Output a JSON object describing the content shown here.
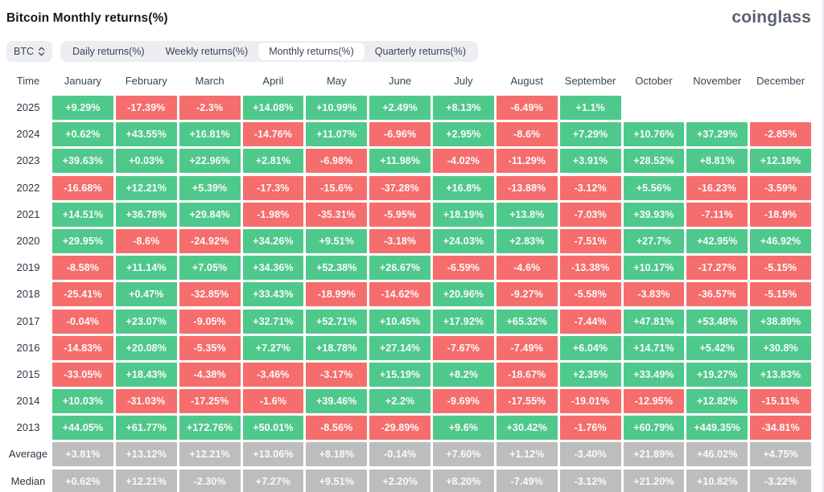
{
  "page": {
    "title": "Bitcoin Monthly returns(%)",
    "brand": "coinglass"
  },
  "controls": {
    "symbol_select": {
      "value": "BTC"
    },
    "tabs": [
      {
        "label": "Daily returns(%)",
        "active": false
      },
      {
        "label": "Weekly returns(%)",
        "active": false
      },
      {
        "label": "Monthly returns(%)",
        "active": true
      },
      {
        "label": "Quarterly returns(%)",
        "active": false
      }
    ]
  },
  "table": {
    "time_header": "Time",
    "month_headers": [
      "January",
      "February",
      "March",
      "April",
      "May",
      "June",
      "July",
      "August",
      "September",
      "October",
      "November",
      "December"
    ],
    "rows": [
      {
        "label": "2025",
        "type": "year",
        "values": [
          "+9.29%",
          "-17.39%",
          "-2.3%",
          "+14.08%",
          "+10.99%",
          "+2.49%",
          "+8.13%",
          "-6.49%",
          "+1.1%",
          null,
          null,
          null
        ]
      },
      {
        "label": "2024",
        "type": "year",
        "values": [
          "+0.62%",
          "+43.55%",
          "+16.81%",
          "-14.76%",
          "+11.07%",
          "-6.96%",
          "+2.95%",
          "-8.6%",
          "+7.29%",
          "+10.76%",
          "+37.29%",
          "-2.85%"
        ]
      },
      {
        "label": "2023",
        "type": "year",
        "values": [
          "+39.63%",
          "+0.03%",
          "+22.96%",
          "+2.81%",
          "-6.98%",
          "+11.98%",
          "-4.02%",
          "-11.29%",
          "+3.91%",
          "+28.52%",
          "+8.81%",
          "+12.18%"
        ]
      },
      {
        "label": "2022",
        "type": "year",
        "values": [
          "-16.68%",
          "+12.21%",
          "+5.39%",
          "-17.3%",
          "-15.6%",
          "-37.28%",
          "+16.8%",
          "-13.88%",
          "-3.12%",
          "+5.56%",
          "-16.23%",
          "-3.59%"
        ]
      },
      {
        "label": "2021",
        "type": "year",
        "values": [
          "+14.51%",
          "+36.78%",
          "+29.84%",
          "-1.98%",
          "-35.31%",
          "-5.95%",
          "+18.19%",
          "+13.8%",
          "-7.03%",
          "+39.93%",
          "-7.11%",
          "-18.9%"
        ]
      },
      {
        "label": "2020",
        "type": "year",
        "values": [
          "+29.95%",
          "-8.6%",
          "-24.92%",
          "+34.26%",
          "+9.51%",
          "-3.18%",
          "+24.03%",
          "+2.83%",
          "-7.51%",
          "+27.7%",
          "+42.95%",
          "+46.92%"
        ]
      },
      {
        "label": "2019",
        "type": "year",
        "values": [
          "-8.58%",
          "+11.14%",
          "+7.05%",
          "+34.36%",
          "+52.38%",
          "+26.67%",
          "-6.59%",
          "-4.6%",
          "-13.38%",
          "+10.17%",
          "-17.27%",
          "-5.15%"
        ]
      },
      {
        "label": "2018",
        "type": "year",
        "values": [
          "-25.41%",
          "+0.47%",
          "-32.85%",
          "+33.43%",
          "-18.99%",
          "-14.62%",
          "+20.96%",
          "-9.27%",
          "-5.58%",
          "-3.83%",
          "-36.57%",
          "-5.15%"
        ]
      },
      {
        "label": "2017",
        "type": "year",
        "values": [
          "-0.04%",
          "+23.07%",
          "-9.05%",
          "+32.71%",
          "+52.71%",
          "+10.45%",
          "+17.92%",
          "+65.32%",
          "-7.44%",
          "+47.81%",
          "+53.48%",
          "+38.89%"
        ]
      },
      {
        "label": "2016",
        "type": "year",
        "values": [
          "-14.83%",
          "+20.08%",
          "-5.35%",
          "+7.27%",
          "+18.78%",
          "+27.14%",
          "-7.67%",
          "-7.49%",
          "+6.04%",
          "+14.71%",
          "+5.42%",
          "+30.8%"
        ]
      },
      {
        "label": "2015",
        "type": "year",
        "values": [
          "-33.05%",
          "+18.43%",
          "-4.38%",
          "-3.46%",
          "-3.17%",
          "+15.19%",
          "+8.2%",
          "-18.67%",
          "+2.35%",
          "+33.49%",
          "+19.27%",
          "+13.83%"
        ]
      },
      {
        "label": "2014",
        "type": "year",
        "values": [
          "+10.03%",
          "-31.03%",
          "-17.25%",
          "-1.6%",
          "+39.46%",
          "+2.2%",
          "-9.69%",
          "-17.55%",
          "-19.01%",
          "-12.95%",
          "+12.82%",
          "-15.11%"
        ]
      },
      {
        "label": "2013",
        "type": "year",
        "values": [
          "+44.05%",
          "+61.77%",
          "+172.76%",
          "+50.01%",
          "-8.56%",
          "-29.89%",
          "+9.6%",
          "+30.42%",
          "-1.76%",
          "+60.79%",
          "+449.35%",
          "-34.81%"
        ]
      },
      {
        "label": "Average",
        "type": "summary",
        "values": [
          "+3.81%",
          "+13.12%",
          "+12.21%",
          "+13.06%",
          "+8.18%",
          "-0.14%",
          "+7.60%",
          "+1.12%",
          "-3.40%",
          "+21.89%",
          "+46.02%",
          "+4.75%"
        ]
      },
      {
        "label": "Median",
        "type": "summary",
        "values": [
          "+0.62%",
          "+12.21%",
          "-2.30%",
          "+7.27%",
          "+9.51%",
          "+2.20%",
          "+8.20%",
          "-7.49%",
          "-3.12%",
          "+21.20%",
          "+10.82%",
          "-3.22%"
        ]
      }
    ]
  },
  "colors": {
    "positive": "#4fc98b",
    "negative": "#f66d6d",
    "summary": "#bdbdbd",
    "cell_text": "#fafafa"
  }
}
